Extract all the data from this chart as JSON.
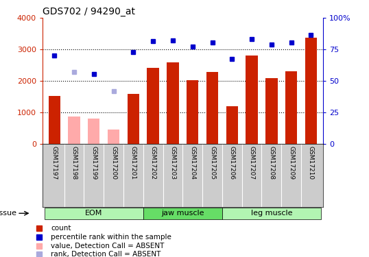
{
  "title": "GDS702 / 94290_at",
  "samples": [
    "GSM17197",
    "GSM17198",
    "GSM17199",
    "GSM17200",
    "GSM17201",
    "GSM17202",
    "GSM17203",
    "GSM17204",
    "GSM17205",
    "GSM17206",
    "GSM17207",
    "GSM17208",
    "GSM17209",
    "GSM17210"
  ],
  "bar_values": [
    1530,
    880,
    800,
    450,
    1600,
    2420,
    2600,
    2030,
    2280,
    1190,
    2800,
    2090,
    2310,
    3380
  ],
  "bar_absent": [
    false,
    true,
    true,
    true,
    false,
    false,
    false,
    false,
    false,
    false,
    false,
    false,
    false,
    false
  ],
  "rank_values": [
    70,
    57,
    55.5,
    42,
    73,
    81.5,
    82,
    77.5,
    80.5,
    67.5,
    83,
    79,
    80.5,
    86.5
  ],
  "rank_absent": [
    false,
    true,
    false,
    true,
    false,
    false,
    false,
    false,
    false,
    false,
    false,
    false,
    false,
    false
  ],
  "ylim_left": [
    0,
    4000
  ],
  "ylim_right": [
    0,
    100
  ],
  "yticks_left": [
    0,
    1000,
    2000,
    3000,
    4000
  ],
  "yticks_right": [
    0,
    25,
    50,
    75,
    100
  ],
  "group_edges": [
    0,
    5,
    9,
    14
  ],
  "group_labels": [
    "EOM",
    "jaw muscle",
    "leg muscle"
  ],
  "group_colors": [
    "#b2f5b2",
    "#66dd66",
    "#b2f5b2"
  ],
  "bar_color_present": "#cc2200",
  "bar_color_absent": "#ffaaaa",
  "rank_color_present": "#0000cc",
  "rank_color_absent": "#aaaadd",
  "xtick_bg": "#cccccc",
  "legend_items": [
    {
      "label": "count",
      "color": "#cc2200"
    },
    {
      "label": "percentile rank within the sample",
      "color": "#0000cc"
    },
    {
      "label": "value, Detection Call = ABSENT",
      "color": "#ffaaaa"
    },
    {
      "label": "rank, Detection Call = ABSENT",
      "color": "#aaaadd"
    }
  ]
}
